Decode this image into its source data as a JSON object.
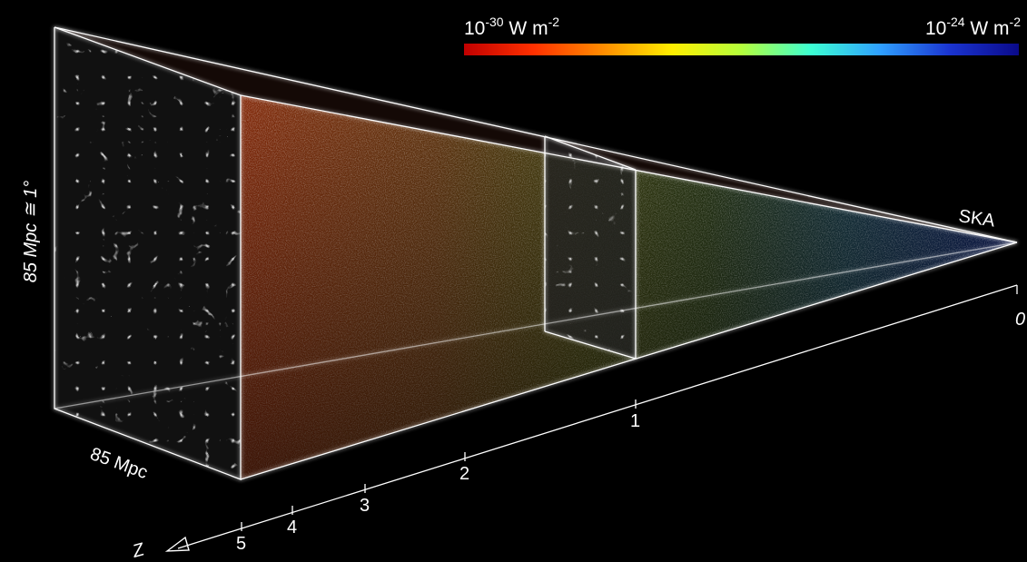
{
  "colorbar": {
    "min_label": {
      "base": "10",
      "exp": "-30",
      "unit": " W m",
      "unit_exp": "-2"
    },
    "max_label": {
      "base": "10",
      "exp": "-24",
      "unit": " W m",
      "unit_exp": "-2"
    },
    "colors": [
      "#c00000",
      "#ff3000",
      "#ff8c00",
      "#ffee00",
      "#b4ff3c",
      "#3cffd2",
      "#2fa0ff",
      "#1a34d0",
      "#0a0a8a"
    ]
  },
  "labels": {
    "side_height": "85 Mpc ≅ 1°",
    "depth": "85 Mpc",
    "telescope": "SKA",
    "z_axis": "Z"
  },
  "z_axis_ticks": [
    "0",
    "1",
    "2",
    "3",
    "4",
    "5"
  ],
  "colors": {
    "background": "#000000",
    "frame": "#ffffff",
    "filaments": "#d9d9d9"
  }
}
